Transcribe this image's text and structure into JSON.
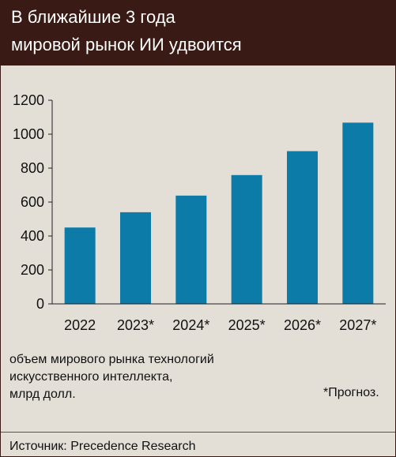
{
  "header": {
    "title_line1": "В ближайшие 3 года",
    "title_line2": "мировой рынок ИИ удвоится"
  },
  "chart_data": {
    "type": "bar",
    "title": "В ближайшие 3 года мировой рынок ИИ удвоится",
    "categories": [
      "2022",
      "2023*",
      "2024*",
      "2025*",
      "2026*",
      "2027*"
    ],
    "series": [
      {
        "values": [
          450,
          540,
          638,
          759,
          900,
          1068
        ]
      }
    ],
    "ylim": [
      0,
      1200
    ],
    "yticks": [
      "0",
      "200",
      "400",
      "600",
      "800",
      "1000",
      "1200"
    ],
    "xlabel": "",
    "ylabel": "",
    "grid": false,
    "bar_color": "#0c7ba8"
  },
  "caption": {
    "line1": "объем мирового рынка технологий",
    "line2": "искусственного интеллекта,",
    "line3": "млрд долл."
  },
  "footnote": "*Прогноз.",
  "source": "Источник: Precedence Research",
  "colors": {
    "header_bg": "#3a1a14",
    "background": "#e3dfd7",
    "bar": "#0c7ba8"
  }
}
